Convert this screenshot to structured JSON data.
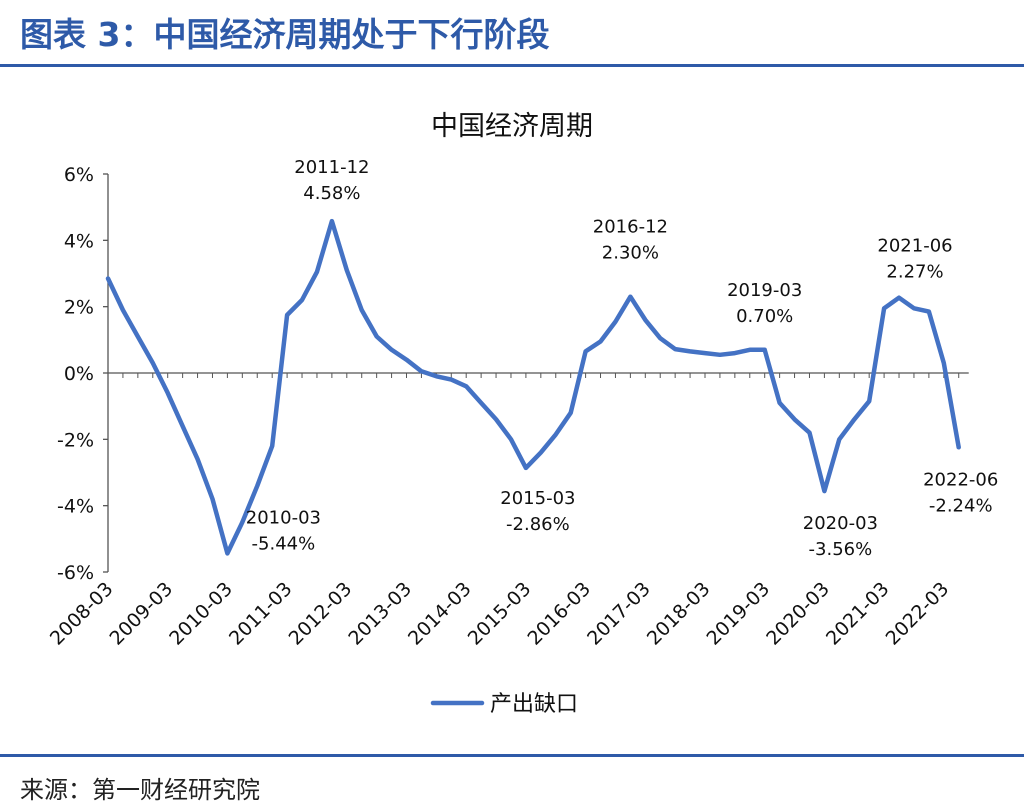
{
  "figure": {
    "title": "图表 3：中国经济周期处于下行阶段",
    "source": "来源：第一财经研究院"
  },
  "chart_data": {
    "type": "line",
    "title": "中国经济周期",
    "xlabel": "",
    "ylabel": "",
    "ylim": [
      -6,
      6
    ],
    "y_ticks": [
      "6%",
      "4%",
      "2%",
      "0%",
      "-2%",
      "-4%",
      "-6%"
    ],
    "x_ticks": [
      "2008-03",
      "2009-03",
      "2010-03",
      "2011-03",
      "2012-03",
      "2013-03",
      "2014-03",
      "2015-03",
      "2016-03",
      "2017-03",
      "2018-03",
      "2019-03",
      "2020-03",
      "2021-03",
      "2022-03"
    ],
    "legend": "bottom",
    "grid": false,
    "line_color": "#4472c4",
    "series": [
      {
        "name": "产出缺口",
        "x": [
          "2008-03",
          "2008-06",
          "2008-09",
          "2008-12",
          "2009-03",
          "2009-06",
          "2009-09",
          "2009-12",
          "2010-03",
          "2010-06",
          "2010-09",
          "2010-12",
          "2011-03",
          "2011-06",
          "2011-09",
          "2011-12",
          "2012-03",
          "2012-06",
          "2012-09",
          "2012-12",
          "2013-03",
          "2013-06",
          "2013-09",
          "2013-12",
          "2014-03",
          "2014-06",
          "2014-09",
          "2014-12",
          "2015-03",
          "2015-06",
          "2015-09",
          "2015-12",
          "2016-03",
          "2016-06",
          "2016-09",
          "2016-12",
          "2017-03",
          "2017-06",
          "2017-09",
          "2017-12",
          "2018-03",
          "2018-06",
          "2018-09",
          "2018-12",
          "2019-03",
          "2019-06",
          "2019-09",
          "2019-12",
          "2020-03",
          "2020-06",
          "2020-09",
          "2020-12",
          "2021-03",
          "2021-06",
          "2021-09",
          "2021-12",
          "2022-03",
          "2022-06"
        ],
        "values": [
          2.85,
          1.9,
          1.1,
          0.3,
          -0.6,
          -1.6,
          -2.6,
          -3.8,
          -5.44,
          -4.5,
          -3.4,
          -2.2,
          1.75,
          2.2,
          3.05,
          4.58,
          3.1,
          1.9,
          1.1,
          0.7,
          0.4,
          0.05,
          -0.1,
          -0.2,
          -0.4,
          -0.9,
          -1.4,
          -2.0,
          -2.86,
          -2.4,
          -1.85,
          -1.2,
          0.65,
          0.95,
          1.55,
          2.3,
          1.6,
          1.05,
          0.72,
          0.65,
          0.6,
          0.55,
          0.6,
          0.7,
          0.7,
          -0.9,
          -1.4,
          -1.8,
          -3.56,
          -2.0,
          -1.4,
          -0.85,
          1.95,
          2.27,
          1.95,
          1.85,
          0.3,
          -2.24
        ]
      }
    ],
    "annotations": [
      {
        "x": "2010-03",
        "date": "2010-03",
        "value": "-5.44%"
      },
      {
        "x": "2011-12",
        "date": "2011-12",
        "value": "4.58%"
      },
      {
        "x": "2015-03",
        "date": "2015-03",
        "value": "-2.86%"
      },
      {
        "x": "2016-12",
        "date": "2016-12",
        "value": "2.30%"
      },
      {
        "x": "2019-03",
        "date": "2019-03",
        "value": "0.70%"
      },
      {
        "x": "2020-03",
        "date": "2020-03",
        "value": "-3.56%"
      },
      {
        "x": "2021-06",
        "date": "2021-06",
        "value": "2.27%"
      },
      {
        "x": "2022-06",
        "date": "2022-06",
        "value": "-2.24%"
      }
    ]
  }
}
